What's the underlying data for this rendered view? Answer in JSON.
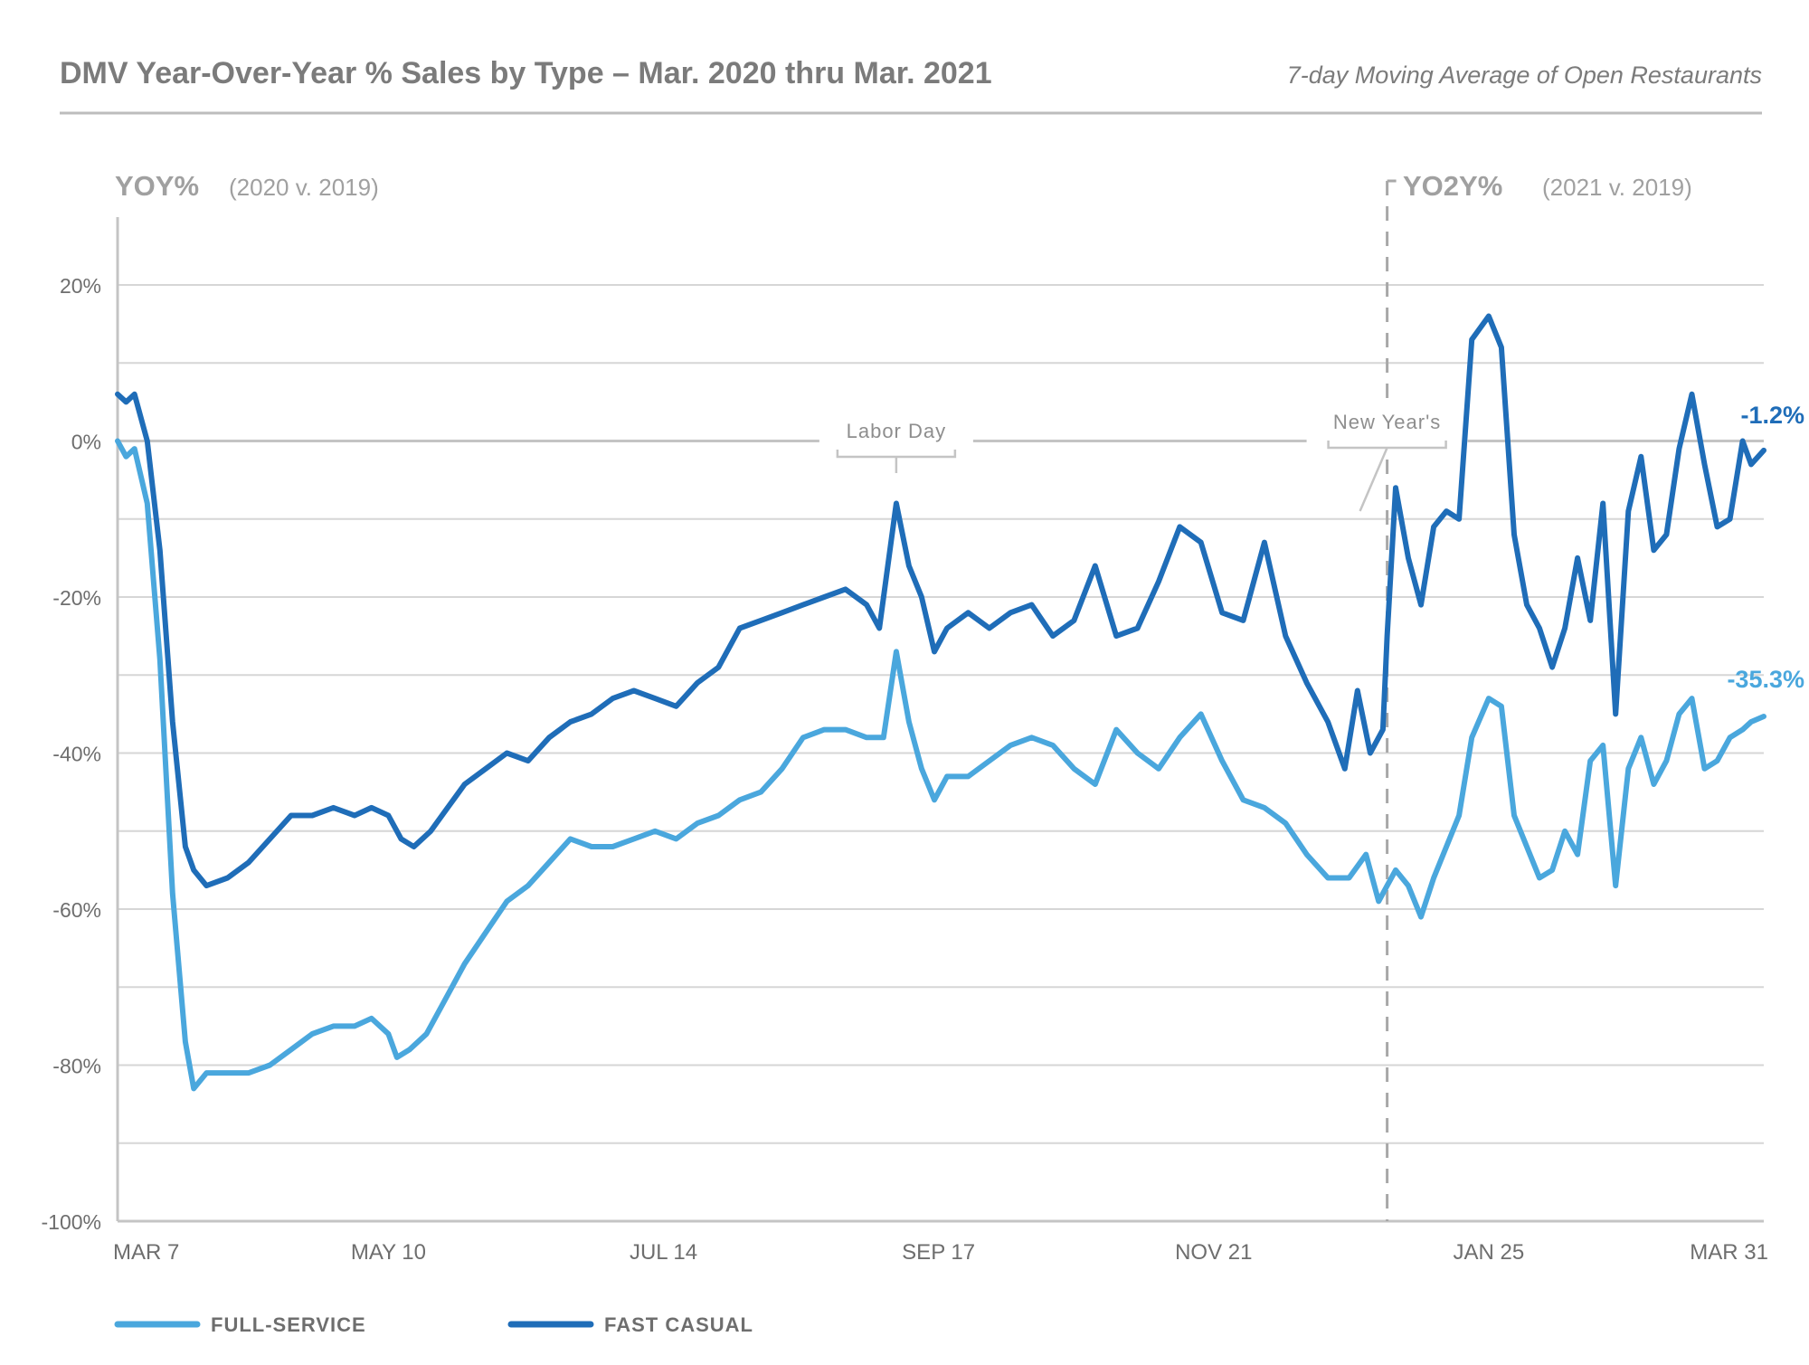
{
  "header": {
    "title": "DMV Year-Over-Year % Sales by Type – Mar. 2020 thru Mar. 2021",
    "subtitle": "7-day Moving Average of Open Restaurants"
  },
  "colors": {
    "full_service": "#4aa7dd",
    "fast_casual": "#1f6db8",
    "text_grey": "#8e8e8e",
    "grid": "#d6d6d6"
  },
  "chart_data": {
    "type": "line",
    "title": "DMV Year-Over-Year % Sales by Type – Mar. 2020 thru Mar. 2021",
    "subtitle": "7-day Moving Average of Open Restaurants",
    "xlabel": "",
    "ylabel": "",
    "section_left": {
      "label": "YOY%",
      "note": "(2020 v. 2019)"
    },
    "section_right": {
      "label": "YO2Y%",
      "note": "(2021 v. 2019)"
    },
    "divider_date": "2021-01-01",
    "x_range": [
      "2020-03-07",
      "2021-03-31"
    ],
    "ylim": [
      -100,
      20
    ],
    "yticks": [
      20,
      0,
      -20,
      -40,
      -60,
      -80,
      -100
    ],
    "ytick_labels": [
      "20%",
      "0%",
      "-20%",
      "-40%",
      "-60%",
      "-80%",
      "-100%"
    ],
    "xticks": [
      "2020-03-07",
      "2020-05-10",
      "2020-07-14",
      "2020-09-17",
      "2020-11-21",
      "2021-01-25",
      "2021-03-31"
    ],
    "xtick_labels": [
      "MAR 7",
      "MAY 10",
      "JUL 14",
      "SEP 17",
      "NOV 21",
      "JAN 25",
      "MAR 31"
    ],
    "grid": true,
    "legend_position": "bottom-left",
    "annotations": [
      {
        "text": "Labor Day",
        "date": "2020-09-07"
      },
      {
        "text": "New Year's",
        "date": "2021-01-01"
      }
    ],
    "series": [
      {
        "name": "FULL-SERVICE",
        "end_label": "-35.3%",
        "points": [
          [
            "2020-03-07",
            0
          ],
          [
            "2020-03-09",
            -2
          ],
          [
            "2020-03-11",
            -1
          ],
          [
            "2020-03-14",
            -8
          ],
          [
            "2020-03-17",
            -28
          ],
          [
            "2020-03-20",
            -58
          ],
          [
            "2020-03-23",
            -77
          ],
          [
            "2020-03-25",
            -83
          ],
          [
            "2020-03-28",
            -81
          ],
          [
            "2020-04-02",
            -81
          ],
          [
            "2020-04-07",
            -81
          ],
          [
            "2020-04-12",
            -80
          ],
          [
            "2020-04-17",
            -78
          ],
          [
            "2020-04-22",
            -76
          ],
          [
            "2020-04-27",
            -75
          ],
          [
            "2020-05-02",
            -75
          ],
          [
            "2020-05-06",
            -74
          ],
          [
            "2020-05-10",
            -76
          ],
          [
            "2020-05-12",
            -79
          ],
          [
            "2020-05-15",
            -78
          ],
          [
            "2020-05-19",
            -76
          ],
          [
            "2020-05-23",
            -72
          ],
          [
            "2020-05-28",
            -67
          ],
          [
            "2020-06-02",
            -63
          ],
          [
            "2020-06-07",
            -59
          ],
          [
            "2020-06-12",
            -57
          ],
          [
            "2020-06-17",
            -54
          ],
          [
            "2020-06-22",
            -51
          ],
          [
            "2020-06-27",
            -52
          ],
          [
            "2020-07-02",
            -52
          ],
          [
            "2020-07-07",
            -51
          ],
          [
            "2020-07-12",
            -50
          ],
          [
            "2020-07-17",
            -51
          ],
          [
            "2020-07-22",
            -49
          ],
          [
            "2020-07-27",
            -48
          ],
          [
            "2020-08-01",
            -46
          ],
          [
            "2020-08-06",
            -45
          ],
          [
            "2020-08-11",
            -42
          ],
          [
            "2020-08-16",
            -38
          ],
          [
            "2020-08-21",
            -37
          ],
          [
            "2020-08-26",
            -37
          ],
          [
            "2020-08-31",
            -38
          ],
          [
            "2020-09-04",
            -38
          ],
          [
            "2020-09-07",
            -27
          ],
          [
            "2020-09-10",
            -36
          ],
          [
            "2020-09-13",
            -42
          ],
          [
            "2020-09-16",
            -46
          ],
          [
            "2020-09-19",
            -43
          ],
          [
            "2020-09-24",
            -43
          ],
          [
            "2020-09-29",
            -41
          ],
          [
            "2020-10-04",
            -39
          ],
          [
            "2020-10-09",
            -38
          ],
          [
            "2020-10-14",
            -39
          ],
          [
            "2020-10-19",
            -42
          ],
          [
            "2020-10-24",
            -44
          ],
          [
            "2020-10-29",
            -37
          ],
          [
            "2020-11-03",
            -40
          ],
          [
            "2020-11-08",
            -42
          ],
          [
            "2020-11-13",
            -38
          ],
          [
            "2020-11-18",
            -35
          ],
          [
            "2020-11-23",
            -41
          ],
          [
            "2020-11-28",
            -46
          ],
          [
            "2020-12-03",
            -47
          ],
          [
            "2020-12-08",
            -49
          ],
          [
            "2020-12-13",
            -53
          ],
          [
            "2020-12-18",
            -56
          ],
          [
            "2020-12-23",
            -56
          ],
          [
            "2020-12-27",
            -53
          ],
          [
            "2020-12-30",
            -59
          ],
          [
            "2021-01-01",
            -57
          ],
          [
            "2021-01-03",
            -55
          ],
          [
            "2021-01-06",
            -57
          ],
          [
            "2021-01-09",
            -61
          ],
          [
            "2021-01-12",
            -56
          ],
          [
            "2021-01-15",
            -52
          ],
          [
            "2021-01-18",
            -48
          ],
          [
            "2021-01-21",
            -38
          ],
          [
            "2021-01-25",
            -33
          ],
          [
            "2021-01-28",
            -34
          ],
          [
            "2021-01-31",
            -48
          ],
          [
            "2021-02-03",
            -52
          ],
          [
            "2021-02-06",
            -56
          ],
          [
            "2021-02-09",
            -55
          ],
          [
            "2021-02-12",
            -50
          ],
          [
            "2021-02-15",
            -53
          ],
          [
            "2021-02-18",
            -41
          ],
          [
            "2021-02-21",
            -39
          ],
          [
            "2021-02-24",
            -57
          ],
          [
            "2021-02-27",
            -42
          ],
          [
            "2021-03-02",
            -38
          ],
          [
            "2021-03-05",
            -44
          ],
          [
            "2021-03-08",
            -41
          ],
          [
            "2021-03-11",
            -35
          ],
          [
            "2021-03-14",
            -33
          ],
          [
            "2021-03-17",
            -42
          ],
          [
            "2021-03-20",
            -41
          ],
          [
            "2021-03-23",
            -38
          ],
          [
            "2021-03-26",
            -37
          ],
          [
            "2021-03-28",
            -36
          ],
          [
            "2021-03-31",
            -35.3
          ]
        ]
      },
      {
        "name": "FAST CASUAL",
        "end_label": "-1.2%",
        "points": [
          [
            "2020-03-07",
            6
          ],
          [
            "2020-03-09",
            5
          ],
          [
            "2020-03-11",
            6
          ],
          [
            "2020-03-14",
            0
          ],
          [
            "2020-03-17",
            -14
          ],
          [
            "2020-03-20",
            -36
          ],
          [
            "2020-03-23",
            -52
          ],
          [
            "2020-03-25",
            -55
          ],
          [
            "2020-03-28",
            -57
          ],
          [
            "2020-04-02",
            -56
          ],
          [
            "2020-04-07",
            -54
          ],
          [
            "2020-04-12",
            -51
          ],
          [
            "2020-04-17",
            -48
          ],
          [
            "2020-04-22",
            -48
          ],
          [
            "2020-04-27",
            -47
          ],
          [
            "2020-05-02",
            -48
          ],
          [
            "2020-05-06",
            -47
          ],
          [
            "2020-05-10",
            -48
          ],
          [
            "2020-05-13",
            -51
          ],
          [
            "2020-05-16",
            -52
          ],
          [
            "2020-05-20",
            -50
          ],
          [
            "2020-05-24",
            -47
          ],
          [
            "2020-05-28",
            -44
          ],
          [
            "2020-06-02",
            -42
          ],
          [
            "2020-06-07",
            -40
          ],
          [
            "2020-06-12",
            -41
          ],
          [
            "2020-06-17",
            -38
          ],
          [
            "2020-06-22",
            -36
          ],
          [
            "2020-06-27",
            -35
          ],
          [
            "2020-07-02",
            -33
          ],
          [
            "2020-07-07",
            -32
          ],
          [
            "2020-07-12",
            -33
          ],
          [
            "2020-07-17",
            -34
          ],
          [
            "2020-07-22",
            -31
          ],
          [
            "2020-07-27",
            -29
          ],
          [
            "2020-08-01",
            -24
          ],
          [
            "2020-08-06",
            -23
          ],
          [
            "2020-08-11",
            -22
          ],
          [
            "2020-08-16",
            -21
          ],
          [
            "2020-08-21",
            -20
          ],
          [
            "2020-08-26",
            -19
          ],
          [
            "2020-08-31",
            -21
          ],
          [
            "2020-09-03",
            -24
          ],
          [
            "2020-09-07",
            -8
          ],
          [
            "2020-09-10",
            -16
          ],
          [
            "2020-09-13",
            -20
          ],
          [
            "2020-09-16",
            -27
          ],
          [
            "2020-09-19",
            -24
          ],
          [
            "2020-09-24",
            -22
          ],
          [
            "2020-09-29",
            -24
          ],
          [
            "2020-10-04",
            -22
          ],
          [
            "2020-10-09",
            -21
          ],
          [
            "2020-10-14",
            -25
          ],
          [
            "2020-10-19",
            -23
          ],
          [
            "2020-10-24",
            -16
          ],
          [
            "2020-10-29",
            -25
          ],
          [
            "2020-11-03",
            -24
          ],
          [
            "2020-11-08",
            -18
          ],
          [
            "2020-11-13",
            -11
          ],
          [
            "2020-11-18",
            -13
          ],
          [
            "2020-11-23",
            -22
          ],
          [
            "2020-11-28",
            -23
          ],
          [
            "2020-12-03",
            -13
          ],
          [
            "2020-12-08",
            -25
          ],
          [
            "2020-12-13",
            -31
          ],
          [
            "2020-12-18",
            -36
          ],
          [
            "2020-12-22",
            -42
          ],
          [
            "2020-12-25",
            -32
          ],
          [
            "2020-12-28",
            -40
          ],
          [
            "2020-12-31",
            -37
          ],
          [
            "2021-01-01",
            -25
          ],
          [
            "2021-01-03",
            -6
          ],
          [
            "2021-01-06",
            -15
          ],
          [
            "2021-01-09",
            -21
          ],
          [
            "2021-01-12",
            -11
          ],
          [
            "2021-01-15",
            -9
          ],
          [
            "2021-01-18",
            -10
          ],
          [
            "2021-01-21",
            13
          ],
          [
            "2021-01-25",
            16
          ],
          [
            "2021-01-28",
            12
          ],
          [
            "2021-01-31",
            -12
          ],
          [
            "2021-02-03",
            -21
          ],
          [
            "2021-02-06",
            -24
          ],
          [
            "2021-02-09",
            -29
          ],
          [
            "2021-02-12",
            -24
          ],
          [
            "2021-02-15",
            -15
          ],
          [
            "2021-02-18",
            -23
          ],
          [
            "2021-02-21",
            -8
          ],
          [
            "2021-02-24",
            -35
          ],
          [
            "2021-02-27",
            -9
          ],
          [
            "2021-03-02",
            -2
          ],
          [
            "2021-03-05",
            -14
          ],
          [
            "2021-03-08",
            -12
          ],
          [
            "2021-03-11",
            -1
          ],
          [
            "2021-03-14",
            6
          ],
          [
            "2021-03-17",
            -3
          ],
          [
            "2021-03-20",
            -11
          ],
          [
            "2021-03-23",
            -10
          ],
          [
            "2021-03-26",
            0
          ],
          [
            "2021-03-28",
            -3
          ],
          [
            "2021-03-31",
            -1.2
          ]
        ]
      }
    ]
  }
}
